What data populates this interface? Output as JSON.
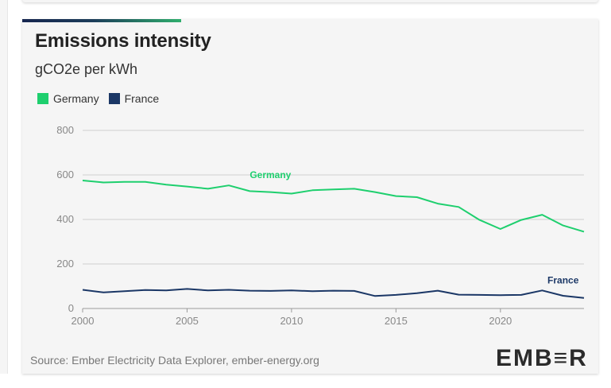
{
  "chart_data": {
    "type": "line",
    "title": "Emissions intensity",
    "subtitle": "gCO2e per kWh",
    "x": [
      2000,
      2001,
      2002,
      2003,
      2004,
      2005,
      2006,
      2007,
      2008,
      2009,
      2010,
      2011,
      2012,
      2013,
      2014,
      2015,
      2016,
      2017,
      2018,
      2019,
      2020,
      2021,
      2022,
      2023,
      2024
    ],
    "x_ticks": [
      2000,
      2005,
      2010,
      2015,
      2020
    ],
    "y_ticks": [
      0,
      200,
      400,
      600,
      800
    ],
    "xlim": [
      2000,
      2024
    ],
    "ylim": [
      0,
      800
    ],
    "grid": true,
    "legend_position": "top-left",
    "series": [
      {
        "name": "Germany",
        "color": "#1ecf6e",
        "values": [
          575,
          566,
          569,
          569,
          556,
          548,
          538,
          553,
          527,
          523,
          516,
          531,
          535,
          538,
          523,
          505,
          500,
          471,
          456,
          398,
          357,
          398,
          421,
          373,
          345
        ]
      },
      {
        "name": "France",
        "color": "#1b3766",
        "values": [
          84,
          72,
          78,
          83,
          81,
          88,
          81,
          84,
          80,
          79,
          81,
          78,
          80,
          79,
          56,
          61,
          69,
          80,
          62,
          61,
          60,
          61,
          81,
          57,
          47
        ]
      }
    ],
    "annotations": [
      {
        "text": "Germany",
        "x": 2008,
        "y": 585
      },
      {
        "text": "France",
        "x": 2023,
        "y": 112
      }
    ]
  },
  "source": "Source: Ember Electricity Data Explorer, ember-energy.org",
  "logo": "EMB≡R"
}
